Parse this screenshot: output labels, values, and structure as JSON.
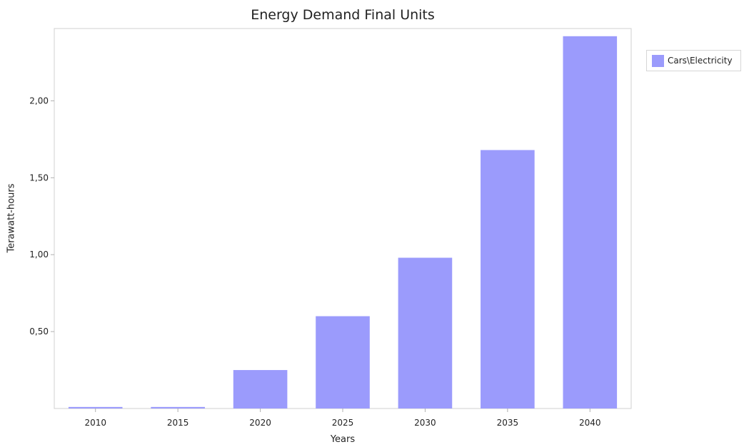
{
  "chart_data": {
    "type": "bar",
    "title": "Energy Demand Final Units",
    "xlabel": "Years",
    "ylabel": "Terawatt-hours",
    "categories": [
      "2010",
      "2015",
      "2020",
      "2025",
      "2030",
      "2035",
      "2040"
    ],
    "series": [
      {
        "name": "Cars\\Electricity",
        "values": [
          0.01,
          0.01,
          0.25,
          0.6,
          0.98,
          1.68,
          2.42
        ]
      }
    ],
    "ylim": [
      0,
      2.47
    ],
    "yticks": [
      0.5,
      1.0,
      1.5,
      2.0
    ],
    "ytick_labels": [
      "0,50",
      "1,00",
      "1,50",
      "2,00"
    ],
    "grid": false,
    "legend_position": "top-right, outside plot",
    "colors": {
      "bar": "#9b9bfc",
      "axis": "#d0d0d0",
      "text": "#222222"
    }
  }
}
